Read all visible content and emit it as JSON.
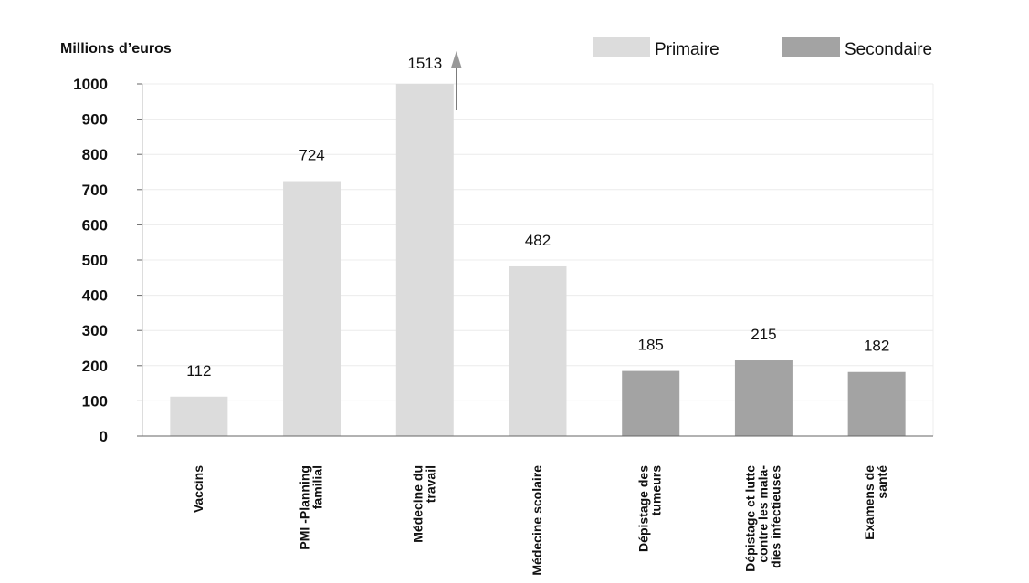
{
  "chart_data": {
    "type": "bar",
    "ylabel": "Millions d’euros",
    "ylim": [
      0,
      1000
    ],
    "yticks": [
      0,
      100,
      200,
      300,
      400,
      500,
      600,
      700,
      800,
      900,
      1000
    ],
    "grid": true,
    "legend_position": "top-right",
    "categories": [
      [
        "Vaccins"
      ],
      [
        "PMI -Planning",
        "familial"
      ],
      [
        "Médecine du",
        "travail"
      ],
      [
        "Médecine scolaire"
      ],
      [
        "Dépistage des",
        "tumeurs"
      ],
      [
        "Dépistage et lutte",
        "contre les mala-",
        "dies infectieuses"
      ],
      [
        "Examens de",
        "santé"
      ]
    ],
    "values": [
      112,
      724,
      1513,
      482,
      185,
      215,
      182
    ],
    "value_labels": [
      "112",
      "724",
      "1513",
      "482",
      "185",
      "215",
      "182"
    ],
    "groups": [
      "Primaire",
      "Primaire",
      "Primaire",
      "Primaire",
      "Secondaire",
      "Secondaire",
      "Secondaire"
    ],
    "truncated_above_ylim": [
      false,
      false,
      true,
      false,
      false,
      false,
      false
    ],
    "series": [
      {
        "name": "Primaire",
        "color": "#dcdcdc"
      },
      {
        "name": "Secondaire",
        "color": "#a3a3a3"
      }
    ]
  }
}
